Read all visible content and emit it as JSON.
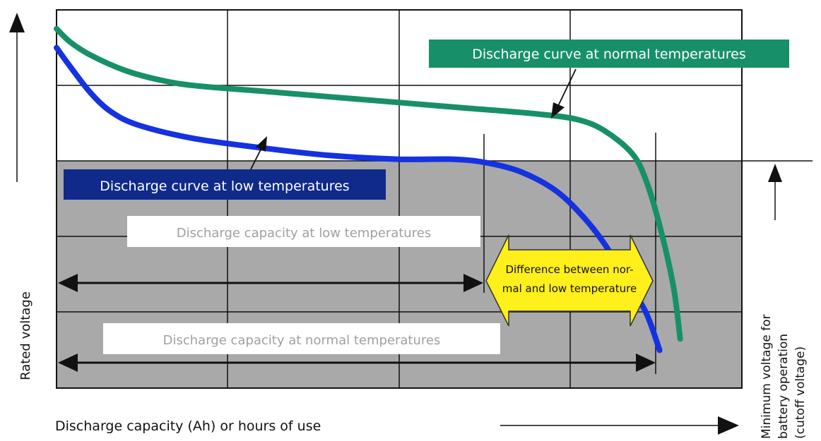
{
  "chart_data": {
    "type": "line",
    "xlabel": "Discharge capacity (Ah) or hours of use",
    "ylabel": "Rated voltage",
    "cutoff_label": [
      "Minimum voltage for",
      "battery operation",
      "(cutoff voltage)"
    ],
    "grid": true,
    "x_range": [
      0,
      100
    ],
    "y_range": [
      0,
      100
    ],
    "cutoff_voltage": 60.5,
    "series": [
      {
        "name": "Discharge curve at normal temperatures",
        "color": "#17906a",
        "points": [
          [
            0,
            95
          ],
          [
            2,
            91.5
          ],
          [
            5,
            88
          ],
          [
            10,
            84
          ],
          [
            15,
            81.5
          ],
          [
            20,
            80
          ],
          [
            30,
            78.5
          ],
          [
            40,
            77
          ],
          [
            50,
            75.5
          ],
          [
            60,
            74
          ],
          [
            70,
            72.5
          ],
          [
            76,
            71
          ],
          [
            80,
            68
          ],
          [
            84,
            62
          ],
          [
            86,
            55
          ],
          [
            88,
            43
          ],
          [
            90,
            27
          ],
          [
            91,
            13
          ]
        ]
      },
      {
        "name": "Discharge curve at low temperatures",
        "color": "#1432e0",
        "points": [
          [
            0,
            90
          ],
          [
            2,
            85
          ],
          [
            5,
            78
          ],
          [
            8,
            73
          ],
          [
            12,
            69.5
          ],
          [
            20,
            66
          ],
          [
            30,
            63.5
          ],
          [
            40,
            61.5
          ],
          [
            50,
            60.5
          ],
          [
            58,
            60.5
          ],
          [
            63,
            59.5
          ],
          [
            68,
            57
          ],
          [
            73,
            52
          ],
          [
            77,
            45
          ],
          [
            80,
            38
          ],
          [
            83,
            29
          ],
          [
            86,
            20
          ],
          [
            88,
            10
          ]
        ]
      }
    ],
    "annotations": {
      "normal_curve_label": "Discharge curve at normal temperatures",
      "low_curve_label": "Discharge curve at low temperatures",
      "low_capacity_label": "Discharge capacity at low temperatures",
      "normal_capacity_label": "Discharge capacity at normal temperatures",
      "difference_label": [
        "Difference between nor-",
        "mal and low temperature"
      ]
    }
  },
  "colors": {
    "normal": "#17906a",
    "low": "#1432e0",
    "low_label_bg": "#0f2a8a",
    "normal_label_bg": "#17906a",
    "shade": "#a9a9a9",
    "difference_fill": "#ffef1a"
  }
}
